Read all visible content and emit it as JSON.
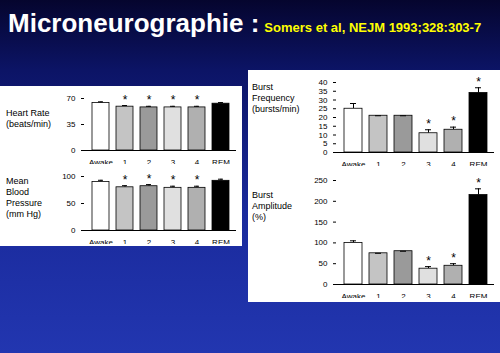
{
  "header": {
    "title": "Microneurographie :",
    "source": "Somers et al, NEJM 1993;328:303-7"
  },
  "chart_data": [
    {
      "type": "bar",
      "ylabel": "Heart Rate (beats/min)",
      "categories": [
        "Awake",
        "1",
        "2",
        "3",
        "4",
        "REM"
      ],
      "values": [
        64,
        59,
        58,
        58,
        58,
        63
      ],
      "errors": [
        1.5,
        1.5,
        1.5,
        1.5,
        1.5,
        1.5
      ],
      "colors": [
        "#ffffff",
        "#c4c4c4",
        "#9a9a9a",
        "#e0e0e0",
        "#b0b0b0",
        "#000000"
      ],
      "ylim": [
        0,
        70
      ],
      "yticks": [
        0,
        35,
        70
      ],
      "annotations": [
        {
          "category": "1",
          "text": "*"
        },
        {
          "category": "2",
          "text": "*"
        },
        {
          "category": "3",
          "text": "*"
        },
        {
          "category": "4",
          "text": "*"
        }
      ]
    },
    {
      "type": "bar",
      "ylabel": "Mean Blood Pressure (mm Hg)",
      "categories": [
        "Awake",
        "1",
        "2",
        "3",
        "4",
        "REM"
      ],
      "values": [
        90,
        80,
        82,
        79,
        79,
        92
      ],
      "errors": [
        3,
        3,
        3,
        3,
        3,
        3
      ],
      "colors": [
        "#ffffff",
        "#c4c4c4",
        "#9a9a9a",
        "#e0e0e0",
        "#b0b0b0",
        "#000000"
      ],
      "ylim": [
        0,
        100
      ],
      "yticks": [
        0,
        50,
        100
      ],
      "annotations": [
        {
          "category": "1",
          "text": "*"
        },
        {
          "category": "2",
          "text": "*"
        },
        {
          "category": "3",
          "text": "*"
        },
        {
          "category": "4",
          "text": "*"
        }
      ]
    },
    {
      "type": "bar",
      "ylabel": "Burst Frequency (bursts/min)",
      "categories": [
        "Awake",
        "1",
        "2",
        "3",
        "4",
        "REM"
      ],
      "values": [
        25,
        21,
        21,
        11,
        13,
        34
      ],
      "errors": [
        3,
        0,
        0,
        2,
        1.5,
        3
      ],
      "colors": [
        "#ffffff",
        "#c4c4c4",
        "#9a9a9a",
        "#e0e0e0",
        "#b0b0b0",
        "#000000"
      ],
      "ylim": [
        0,
        40
      ],
      "yticks": [
        0,
        5,
        10,
        15,
        20,
        25,
        30,
        35,
        40
      ],
      "annotations": [
        {
          "category": "3",
          "text": "*"
        },
        {
          "category": "4",
          "text": "*"
        },
        {
          "category": "REM",
          "text": "*"
        }
      ]
    },
    {
      "type": "bar",
      "ylabel": "Burst Amplitude (%)",
      "categories": [
        "Awake",
        "1",
        "2",
        "3",
        "4",
        "REM"
      ],
      "values": [
        100,
        75,
        80,
        38,
        45,
        215
      ],
      "errors": [
        5,
        0,
        0,
        5,
        5,
        15
      ],
      "colors": [
        "#ffffff",
        "#c4c4c4",
        "#9a9a9a",
        "#e0e0e0",
        "#b0b0b0",
        "#000000"
      ],
      "ylim": [
        0,
        250
      ],
      "yticks": [
        0,
        50,
        100,
        150,
        200,
        250
      ],
      "annotations": [
        {
          "category": "3",
          "text": "*"
        },
        {
          "category": "4",
          "text": "*"
        },
        {
          "category": "REM",
          "text": "*"
        }
      ]
    }
  ]
}
